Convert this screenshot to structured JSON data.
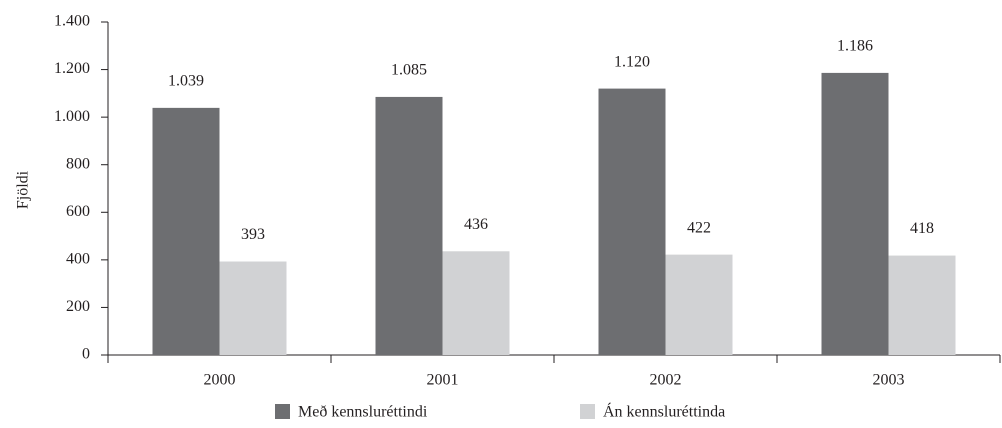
{
  "chart_data": {
    "type": "bar",
    "ylabel": "Fjöldi",
    "categories": [
      "2000",
      "2001",
      "2002",
      "2003"
    ],
    "series": [
      {
        "name": "Með kennsluréttindi",
        "color": "#6d6e71",
        "values": [
          1039,
          1085,
          1120,
          1186
        ],
        "value_labels": [
          "1.039",
          "1.085",
          "1.120",
          "1.186"
        ]
      },
      {
        "name": "Án kennsluréttinda",
        "color": "#d1d2d4",
        "values": [
          393,
          436,
          422,
          418
        ]
      }
    ],
    "ylim": [
      0,
      1400
    ],
    "yticks": [
      0,
      200,
      400,
      600,
      800,
      {
        "value": 1000,
        "label": "1.000"
      },
      {
        "value": 1200,
        "label": "1.200"
      },
      {
        "value": 1400,
        "label": "1.400"
      }
    ],
    "grid": false,
    "legend": "bottom"
  }
}
